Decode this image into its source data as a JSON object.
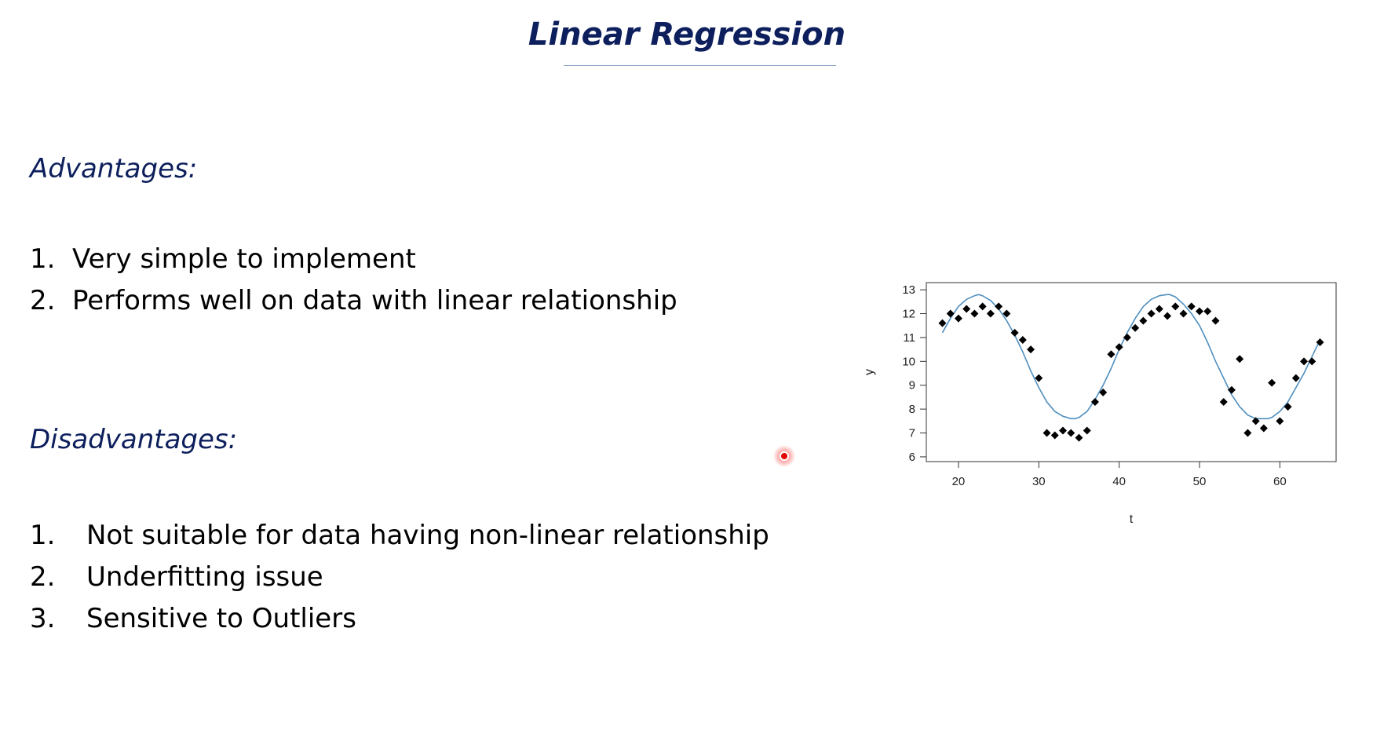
{
  "slide": {
    "title": "Linear Regression",
    "advantages": {
      "heading": "Advantages:",
      "items": [
        {
          "num": "1.",
          "text": "Very simple to implement"
        },
        {
          "num": "2.",
          "text": "Performs well on data with linear relationship"
        }
      ]
    },
    "disadvantages": {
      "heading": "Disadvantages:",
      "items": [
        {
          "num": "1.",
          "text": "Not suitable for data having non-linear relationship"
        },
        {
          "num": "2.",
          "text": "Underfitting issue"
        },
        {
          "num": "3.",
          "text": "Sensitive to Outliers"
        }
      ]
    },
    "pointer_icon": "laser-pointer-icon"
  },
  "colors": {
    "heading": "#0d1f5c",
    "fit_line": "#4f8fbf",
    "points": "#000000",
    "pointer": "#e00000"
  },
  "chart_data": {
    "type": "scatter",
    "xlabel": "t",
    "ylabel": "y",
    "xlim": [
      16,
      67
    ],
    "ylim": [
      5.8,
      13.3
    ],
    "xticks": [
      20,
      30,
      40,
      50,
      60
    ],
    "yticks": [
      6,
      7,
      8,
      9,
      10,
      11,
      12,
      13
    ],
    "grid": false,
    "series": [
      {
        "kind": "points",
        "x": [
          18,
          19,
          20,
          21,
          22,
          23,
          24,
          25,
          26,
          27,
          28,
          29,
          30,
          31,
          32,
          33,
          34,
          35,
          36,
          37,
          38,
          39,
          40,
          41,
          42,
          43,
          44,
          45,
          46,
          47,
          48,
          49,
          50,
          51,
          52,
          53,
          54,
          55,
          56,
          57,
          58,
          59,
          60,
          61,
          62,
          63,
          64,
          65
        ],
        "y": [
          11.6,
          12.0,
          11.8,
          12.2,
          12.0,
          12.3,
          12.0,
          12.3,
          12.0,
          11.2,
          10.9,
          10.5,
          9.3,
          7.0,
          6.9,
          7.1,
          7.0,
          6.8,
          7.1,
          8.3,
          8.7,
          10.3,
          10.6,
          11.0,
          11.4,
          11.7,
          12.0,
          12.2,
          11.9,
          12.3,
          12.0,
          12.3,
          12.1,
          12.1,
          11.7,
          8.3,
          8.8,
          10.1,
          7.0,
          7.5,
          7.2,
          9.1,
          7.5,
          8.1,
          9.3,
          10.0,
          10.0,
          10.8
        ]
      },
      {
        "kind": "fit-curve",
        "x": [
          18,
          19,
          20,
          21,
          22,
          22.5,
          23,
          24,
          25,
          26,
          27,
          28,
          29,
          30,
          31,
          32,
          33,
          34,
          34.5,
          35,
          36,
          37,
          38,
          39,
          40,
          41,
          42,
          43,
          44,
          45,
          46,
          46.3,
          47,
          48,
          49,
          50,
          51,
          52,
          53,
          54,
          55,
          56,
          57,
          58,
          58.5,
          59,
          60,
          61,
          62,
          63,
          64,
          65
        ],
        "y": [
          11.2,
          11.8,
          12.3,
          12.6,
          12.75,
          12.8,
          12.75,
          12.55,
          12.2,
          11.7,
          11.1,
          10.4,
          9.6,
          8.9,
          8.3,
          7.9,
          7.7,
          7.6,
          7.6,
          7.65,
          7.9,
          8.4,
          9.0,
          9.7,
          10.5,
          11.2,
          11.8,
          12.3,
          12.6,
          12.75,
          12.8,
          12.8,
          12.7,
          12.4,
          12.0,
          11.5,
          10.8,
          10.0,
          9.3,
          8.6,
          8.1,
          7.75,
          7.6,
          7.6,
          7.6,
          7.65,
          7.9,
          8.3,
          8.9,
          9.5,
          10.2,
          10.9
        ]
      }
    ]
  }
}
